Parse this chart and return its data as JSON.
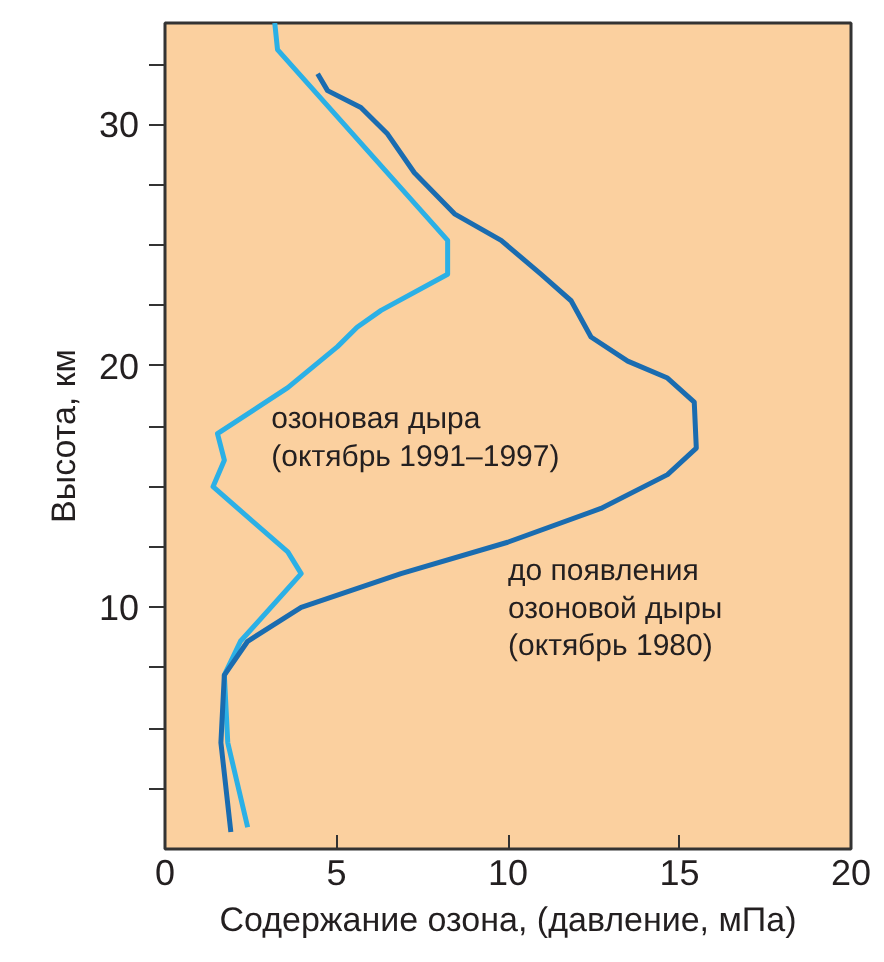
{
  "chart_data": {
    "type": "line",
    "xlabel": "Содержание озона, (давление, мПа)",
    "ylabel": "Высота, км",
    "xlim": [
      0,
      20
    ],
    "xticks": [
      0,
      5,
      10,
      15,
      20
    ],
    "ylim": [
      0,
      34.2
    ],
    "yticks": [
      {
        "value": 2.5,
        "label": null
      },
      {
        "value": 5,
        "label": null
      },
      {
        "value": 7.5,
        "label": null
      },
      10,
      {
        "value": 12.5,
        "label": null
      },
      {
        "value": 15,
        "label": null
      },
      {
        "value": 17.5,
        "label": null
      },
      20,
      {
        "value": 22.5,
        "label": null
      },
      {
        "value": 25,
        "label": null
      },
      {
        "value": 27.5,
        "label": null
      },
      30,
      {
        "value": 32.5,
        "label": null
      }
    ],
    "grid": false,
    "marker": "none",
    "line_style": "solid",
    "series": [
      {
        "color": "#2bb0e6",
        "x": [
          3.2,
          3.28,
          8.24,
          8.24,
          6.3,
          5.6,
          5.03,
          3.58,
          1.53,
          1.73,
          1.4,
          3.58,
          3.97,
          2.2,
          1.73,
          1.83,
          2.41
        ],
        "values": [
          34.2,
          33.1,
          25.2,
          23.8,
          22.3,
          21.6,
          20.8,
          19.1,
          17.2,
          16.1,
          15.0,
          12.3,
          11.4,
          8.6,
          7.2,
          4.4,
          0.9
        ]
      },
      {
        "color": "#1a6cb0",
        "x": [
          4.45,
          4.74,
          5.71,
          6.49,
          7.27,
          8.44,
          9.8,
          10.96,
          11.84,
          12.42,
          13.49,
          14.65,
          15.43,
          15.49,
          14.65,
          12.71,
          9.99,
          6.88,
          3.97,
          2.41,
          1.73,
          1.63,
          1.92
        ],
        "values": [
          32.1,
          31.4,
          30.7,
          29.6,
          28.0,
          26.3,
          25.2,
          23.8,
          22.7,
          21.2,
          20.2,
          19.5,
          18.5,
          16.6,
          15.5,
          14.1,
          12.7,
          11.4,
          10.0,
          8.6,
          7.2,
          4.4,
          0.7
        ]
      }
    ],
    "annotations": [
      {
        "text": "озоновая дыра\n(октябрь 1991–1997)",
        "x": 3.1,
        "y": 18.5
      },
      {
        "text": "до появления\nозоновой дыры\n(октябрь 1980)",
        "x": 10.0,
        "y": 12.2
      }
    ]
  }
}
